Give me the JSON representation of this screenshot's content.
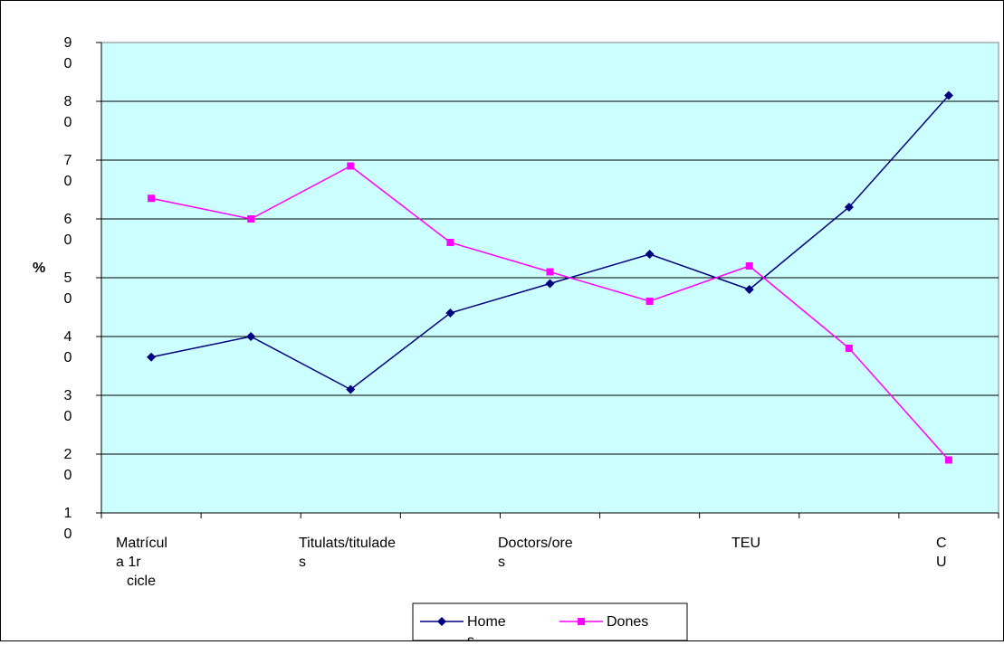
{
  "chart_data": {
    "type": "line",
    "ylabel": "%",
    "ylim": [
      10,
      90
    ],
    "y_ticks": [
      {
        "value": 90,
        "label": [
          "9",
          "0"
        ]
      },
      {
        "value": 80,
        "label": [
          "8",
          "0"
        ]
      },
      {
        "value": 70,
        "label": [
          "7",
          "0"
        ]
      },
      {
        "value": 60,
        "label": [
          "6",
          "0"
        ]
      },
      {
        "value": 50,
        "label": [
          "5",
          "0"
        ]
      },
      {
        "value": 40,
        "label": [
          "4",
          "0"
        ]
      },
      {
        "value": 30,
        "label": [
          "3",
          "0"
        ]
      },
      {
        "value": 20,
        "label": [
          "2",
          "0"
        ]
      },
      {
        "value": 10,
        "label": [
          "1",
          "0"
        ]
      }
    ],
    "categories": [
      "Matrícula 1r cicle",
      "",
      "Titulats/titulades",
      "",
      "Doctors/ores",
      "",
      "TEU",
      "",
      "CU"
    ],
    "category_labels": [
      {
        "index": 0,
        "lines": [
          "Matrícul",
          "a 1r",
          "cicle"
        ]
      },
      {
        "index": 2,
        "lines": [
          "Titulats/titulade",
          "s"
        ]
      },
      {
        "index": 4,
        "lines": [
          "Doctors/ore",
          "s"
        ]
      },
      {
        "index": 6,
        "lines": [
          "TEU"
        ]
      },
      {
        "index": 8,
        "lines": [
          "C",
          "U"
        ]
      }
    ],
    "series": [
      {
        "name": "Homes",
        "legend_lines": [
          "Home",
          "s"
        ],
        "color": "#000080",
        "marker": "diamond",
        "values": [
          36.5,
          40,
          31,
          44,
          49,
          54,
          48,
          62,
          81
        ]
      },
      {
        "name": "Dones",
        "legend_lines": [
          "Dones"
        ],
        "color": "#FF00FF",
        "marker": "square",
        "values": [
          63.5,
          60,
          69,
          56,
          51,
          46,
          52,
          38,
          19
        ]
      }
    ],
    "grid": true,
    "plot_background": "#CCFFFF",
    "legend_position": "bottom"
  }
}
